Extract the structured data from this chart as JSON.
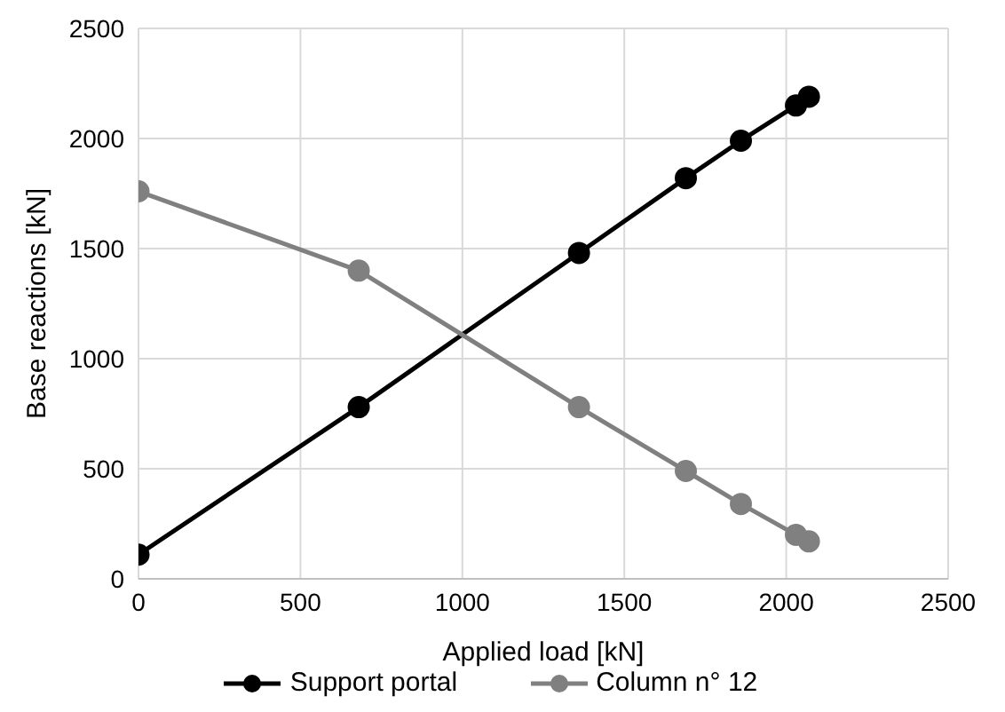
{
  "chart_data": {
    "type": "line",
    "xlabel": "Applied load [kN]",
    "ylabel": "Base reactions [kN]",
    "x": [
      0,
      680,
      1360,
      1690,
      1860,
      2030,
      2070
    ],
    "series": [
      {
        "name": "Support portal",
        "color": "#000000",
        "values": [
          110,
          780,
          1480,
          1820,
          1990,
          2150,
          2190
        ]
      },
      {
        "name": "Column n° 12",
        "color": "#808080",
        "values": [
          1760,
          1400,
          780,
          490,
          340,
          200,
          170
        ]
      }
    ],
    "xlim": [
      0,
      2500
    ],
    "xticks": [
      0,
      500,
      1000,
      1500,
      2000,
      2500
    ],
    "ylim": [
      0,
      2500
    ],
    "yticks": [
      0,
      500,
      1000,
      1500,
      2000,
      2500
    ],
    "grid": true,
    "legend": "bottom",
    "marker": "circle",
    "line_style": "solid"
  }
}
